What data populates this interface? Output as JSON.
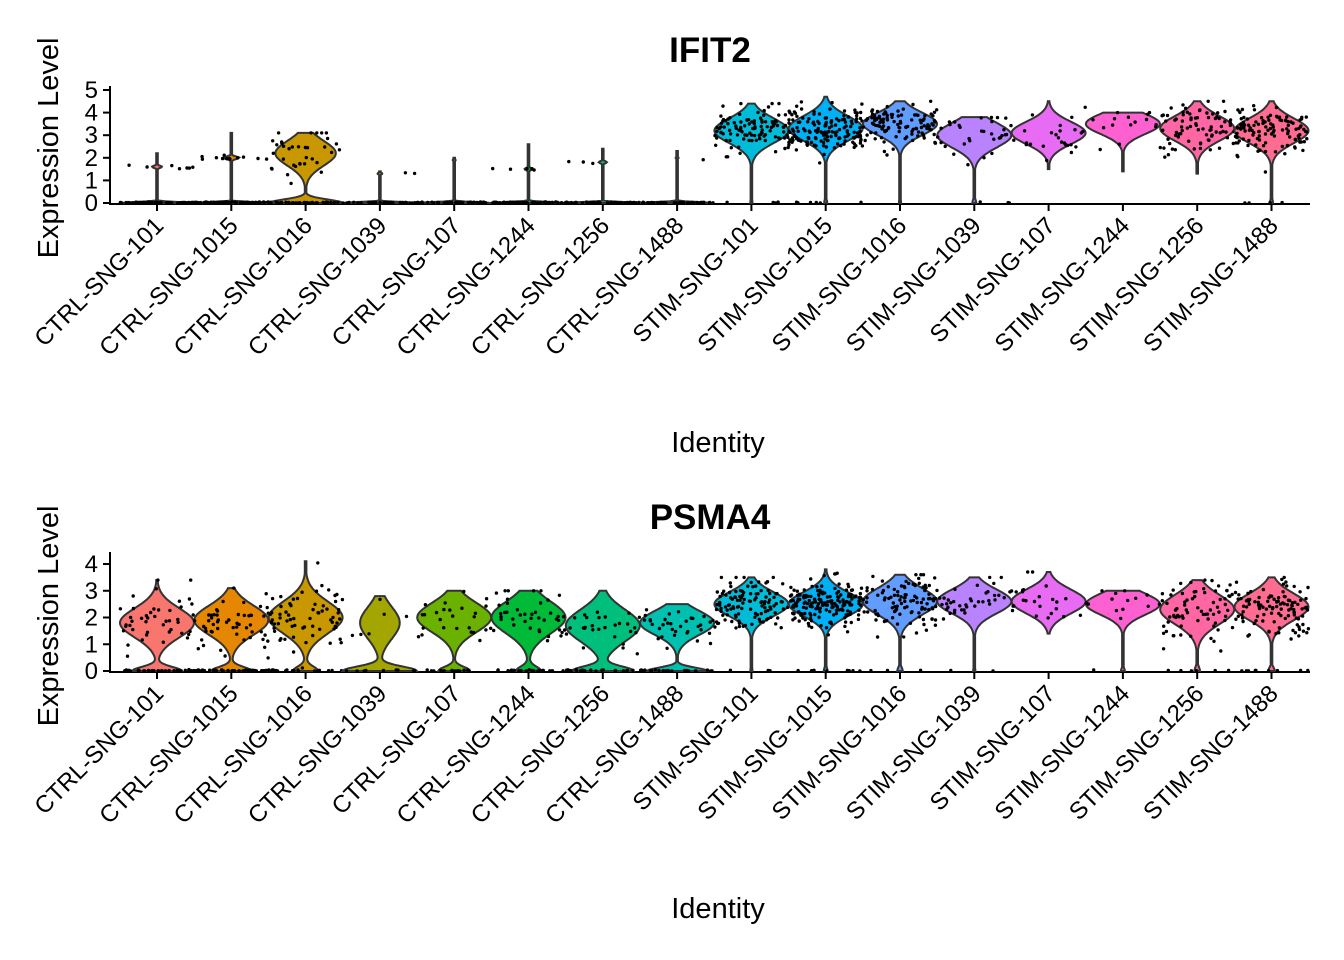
{
  "chart_data": [
    {
      "type": "violin",
      "title": "IFIT2",
      "xlabel": "Identity",
      "ylabel": "Expression Level",
      "ylim": [
        0,
        5
      ],
      "yticks": [
        0,
        1,
        2,
        3,
        4,
        5
      ],
      "categories": [
        "CTRL-SNG-101",
        "CTRL-SNG-1015",
        "CTRL-SNG-1016",
        "CTRL-SNG-1039",
        "CTRL-SNG-107",
        "CTRL-SNG-1244",
        "CTRL-SNG-1256",
        "CTRL-SNG-1488",
        "STIM-SNG-101",
        "STIM-SNG-1015",
        "STIM-SNG-1016",
        "STIM-SNG-1039",
        "STIM-SNG-107",
        "STIM-SNG-1244",
        "STIM-SNG-1256",
        "STIM-SNG-1488"
      ],
      "colors": [
        "#F8766D",
        "#E58700",
        "#C99800",
        "#A3A500",
        "#6BB100",
        "#00BA38",
        "#00BF7D",
        "#00C0AF",
        "#00BCD8",
        "#00B0F6",
        "#619CFF",
        "#B983FF",
        "#E76BF3",
        "#FD61D1",
        "#FF67A4",
        "#FF6C91"
      ],
      "series": [
        {
          "name": "CTRL-SNG-101",
          "min": 0,
          "max": 2.2,
          "median": 0,
          "spread": 0.05,
          "high_mean": 1.6,
          "high_frac": 0.12,
          "n": 70
        },
        {
          "name": "CTRL-SNG-1015",
          "min": 0,
          "max": 3.1,
          "median": 0,
          "spread": 0.06,
          "high_mean": 2.0,
          "high_frac": 0.18,
          "n": 85
        },
        {
          "name": "CTRL-SNG-1016",
          "min": 0,
          "max": 3.1,
          "median": 0.6,
          "spread": 0.55,
          "high_mean": 2.2,
          "high_frac": 0.45,
          "n": 70
        },
        {
          "name": "CTRL-SNG-1039",
          "min": 0,
          "max": 1.4,
          "median": 0,
          "spread": 0.04,
          "high_mean": 1.3,
          "high_frac": 0.06,
          "n": 35
        },
        {
          "name": "CTRL-SNG-107",
          "min": 0,
          "max": 2.0,
          "median": 0,
          "spread": 0.04,
          "high_mean": 1.9,
          "high_frac": 0.04,
          "n": 40
        },
        {
          "name": "CTRL-SNG-1244",
          "min": 0,
          "max": 2.6,
          "median": 0,
          "spread": 0.05,
          "high_mean": 1.5,
          "high_frac": 0.1,
          "n": 60
        },
        {
          "name": "CTRL-SNG-1256",
          "min": 0,
          "max": 2.4,
          "median": 0,
          "spread": 0.05,
          "high_mean": 1.8,
          "high_frac": 0.1,
          "n": 60
        },
        {
          "name": "CTRL-SNG-1488",
          "min": 0,
          "max": 2.3,
          "median": 0,
          "spread": 0.04,
          "high_mean": 2.0,
          "high_frac": 0.04,
          "n": 45
        },
        {
          "name": "STIM-SNG-101",
          "min": 0,
          "max": 4.4,
          "median": 3.2,
          "spread": 0.55,
          "high_mean": 3.2,
          "high_frac": 0.97,
          "n": 110
        },
        {
          "name": "STIM-SNG-1015",
          "min": 0,
          "max": 4.7,
          "median": 3.3,
          "spread": 0.55,
          "high_mean": 3.3,
          "high_frac": 0.96,
          "n": 170
        },
        {
          "name": "STIM-SNG-1016",
          "min": 0,
          "max": 4.5,
          "median": 3.5,
          "spread": 0.5,
          "high_mean": 3.5,
          "high_frac": 0.97,
          "n": 110
        },
        {
          "name": "STIM-SNG-1039",
          "min": 0,
          "max": 3.8,
          "median": 3.0,
          "spread": 0.55,
          "high_mean": 3.0,
          "high_frac": 0.95,
          "n": 35
        },
        {
          "name": "STIM-SNG-107",
          "min": 1.5,
          "max": 4.5,
          "median": 3.1,
          "spread": 0.5,
          "high_mean": 3.1,
          "high_frac": 1.0,
          "n": 25
        },
        {
          "name": "STIM-SNG-1244",
          "min": 1.4,
          "max": 4.0,
          "median": 3.5,
          "spread": 0.45,
          "high_mean": 3.5,
          "high_frac": 1.0,
          "n": 15
        },
        {
          "name": "STIM-SNG-1256",
          "min": 1.3,
          "max": 4.5,
          "median": 3.3,
          "spread": 0.55,
          "high_mean": 3.3,
          "high_frac": 1.0,
          "n": 80
        },
        {
          "name": "STIM-SNG-1488",
          "min": 0,
          "max": 4.5,
          "median": 3.2,
          "spread": 0.55,
          "high_mean": 3.2,
          "high_frac": 0.96,
          "n": 120
        }
      ]
    },
    {
      "type": "violin",
      "title": "PSMA4",
      "xlabel": "Identity",
      "ylabel": "Expression Level",
      "ylim": [
        0,
        4.3
      ],
      "yticks": [
        0,
        1,
        2,
        3,
        4
      ],
      "categories": [
        "CTRL-SNG-101",
        "CTRL-SNG-1015",
        "CTRL-SNG-1016",
        "CTRL-SNG-1039",
        "CTRL-SNG-107",
        "CTRL-SNG-1244",
        "CTRL-SNG-1256",
        "CTRL-SNG-1488",
        "STIM-SNG-101",
        "STIM-SNG-1015",
        "STIM-SNG-1016",
        "STIM-SNG-1039",
        "STIM-SNG-107",
        "STIM-SNG-1244",
        "STIM-SNG-1256",
        "STIM-SNG-1488"
      ],
      "colors": [
        "#F8766D",
        "#E58700",
        "#C99800",
        "#A3A500",
        "#6BB100",
        "#00BA38",
        "#00BF7D",
        "#00C0AF",
        "#00BCD8",
        "#00B0F6",
        "#619CFF",
        "#B983FF",
        "#E76BF3",
        "#FD61D1",
        "#FF67A4",
        "#FF6C91"
      ],
      "series": [
        {
          "name": "CTRL-SNG-101",
          "min": 0,
          "max": 3.4,
          "median": 1.8,
          "spread": 0.55,
          "high_mean": 1.8,
          "high_frac": 0.6,
          "n": 70
        },
        {
          "name": "CTRL-SNG-1015",
          "min": 0,
          "max": 3.1,
          "median": 1.9,
          "spread": 0.55,
          "high_mean": 1.9,
          "high_frac": 0.65,
          "n": 90
        },
        {
          "name": "CTRL-SNG-1016",
          "min": 0,
          "max": 4.1,
          "median": 2.0,
          "spread": 0.6,
          "high_mean": 2.0,
          "high_frac": 0.75,
          "n": 85
        },
        {
          "name": "CTRL-SNG-1039",
          "min": 0,
          "max": 2.8,
          "median": 1.8,
          "spread": 0.6,
          "high_mean": 1.8,
          "high_frac": 0.35,
          "n": 15
        },
        {
          "name": "CTRL-SNG-107",
          "min": 0,
          "max": 3.0,
          "median": 2.0,
          "spread": 0.55,
          "high_mean": 2.0,
          "high_frac": 0.7,
          "n": 40
        },
        {
          "name": "CTRL-SNG-1244",
          "min": 0,
          "max": 3.0,
          "median": 2.0,
          "spread": 0.6,
          "high_mean": 2.0,
          "high_frac": 0.75,
          "n": 65
        },
        {
          "name": "CTRL-SNG-1256",
          "min": 0,
          "max": 3.0,
          "median": 1.7,
          "spread": 0.6,
          "high_mean": 1.7,
          "high_frac": 0.55,
          "n": 50
        },
        {
          "name": "CTRL-SNG-1488",
          "min": 0,
          "max": 2.5,
          "median": 1.8,
          "spread": 0.45,
          "high_mean": 1.8,
          "high_frac": 0.55,
          "n": 55
        },
        {
          "name": "STIM-SNG-101",
          "min": 0,
          "max": 3.5,
          "median": 2.5,
          "spread": 0.45,
          "high_mean": 2.5,
          "high_frac": 0.97,
          "n": 120
        },
        {
          "name": "STIM-SNG-1015",
          "min": 0,
          "max": 3.8,
          "median": 2.5,
          "spread": 0.45,
          "high_mean": 2.5,
          "high_frac": 0.95,
          "n": 190
        },
        {
          "name": "STIM-SNG-1016",
          "min": 0,
          "max": 3.6,
          "median": 2.6,
          "spread": 0.5,
          "high_mean": 2.6,
          "high_frac": 0.93,
          "n": 110
        },
        {
          "name": "STIM-SNG-1039",
          "min": 0,
          "max": 3.5,
          "median": 2.6,
          "spread": 0.45,
          "high_mean": 2.6,
          "high_frac": 0.97,
          "n": 40
        },
        {
          "name": "STIM-SNG-107",
          "min": 1.4,
          "max": 3.7,
          "median": 2.6,
          "spread": 0.45,
          "high_mean": 2.6,
          "high_frac": 1.0,
          "n": 25
        },
        {
          "name": "STIM-SNG-1244",
          "min": 0,
          "max": 3.0,
          "median": 2.5,
          "spread": 0.4,
          "high_mean": 2.5,
          "high_frac": 0.95,
          "n": 15
        },
        {
          "name": "STIM-SNG-1256",
          "min": 0,
          "max": 3.4,
          "median": 2.3,
          "spread": 0.55,
          "high_mean": 2.3,
          "high_frac": 0.93,
          "n": 80
        },
        {
          "name": "STIM-SNG-1488",
          "min": 0,
          "max": 3.5,
          "median": 2.4,
          "spread": 0.5,
          "high_mean": 2.4,
          "high_frac": 0.92,
          "n": 120
        }
      ]
    }
  ]
}
